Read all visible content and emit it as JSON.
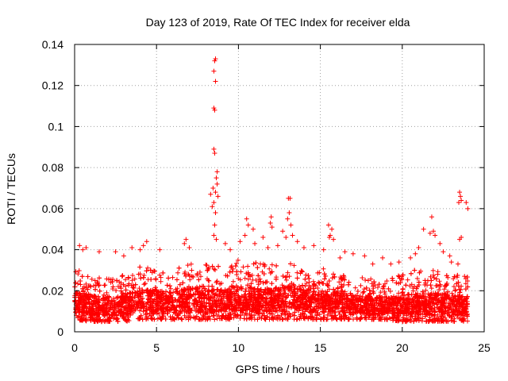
{
  "chart_data": {
    "type": "scatter",
    "title": "Day 123 of 2019, Rate Of TEC Index for receiver elda",
    "xlabel": "GPS time / hours",
    "ylabel": "ROTI / TECUs",
    "xlim": [
      0,
      25
    ],
    "ylim": [
      0,
      0.14
    ],
    "xticks": [
      0,
      5,
      10,
      15,
      20,
      25
    ],
    "xtick_labels": [
      "0",
      "5",
      "10",
      "15",
      "20",
      "25"
    ],
    "yticks": [
      0,
      0.02,
      0.04,
      0.06,
      0.08,
      0.1,
      0.12,
      0.14
    ],
    "ytick_labels": [
      "0",
      "0.02",
      "0.04",
      "0.06",
      "0.08",
      "0.1",
      "0.12",
      "0.14"
    ],
    "grid": true,
    "marker": "+",
    "series": [
      {
        "name": "ROTI",
        "color": "#ff0000",
        "points": [
          {
            "x": 8.55,
            "y": 0.132
          },
          {
            "x": 8.6,
            "y": 0.133
          },
          {
            "x": 8.5,
            "y": 0.127
          },
          {
            "x": 8.6,
            "y": 0.122
          },
          {
            "x": 8.5,
            "y": 0.109
          },
          {
            "x": 8.55,
            "y": 0.108
          },
          {
            "x": 8.5,
            "y": 0.089
          },
          {
            "x": 8.55,
            "y": 0.087
          },
          {
            "x": 8.7,
            "y": 0.078
          },
          {
            "x": 8.65,
            "y": 0.075
          },
          {
            "x": 8.7,
            "y": 0.072
          },
          {
            "x": 8.45,
            "y": 0.07
          },
          {
            "x": 8.6,
            "y": 0.068
          },
          {
            "x": 8.3,
            "y": 0.067
          },
          {
            "x": 8.75,
            "y": 0.066
          },
          {
            "x": 8.5,
            "y": 0.063
          },
          {
            "x": 8.4,
            "y": 0.061
          },
          {
            "x": 8.6,
            "y": 0.058
          },
          {
            "x": 8.55,
            "y": 0.052
          },
          {
            "x": 8.5,
            "y": 0.047
          },
          {
            "x": 8.65,
            "y": 0.045
          },
          {
            "x": 13.05,
            "y": 0.065
          },
          {
            "x": 13.15,
            "y": 0.065
          },
          {
            "x": 13.1,
            "y": 0.058
          },
          {
            "x": 13.0,
            "y": 0.055
          },
          {
            "x": 13.2,
            "y": 0.052
          },
          {
            "x": 12.0,
            "y": 0.056
          },
          {
            "x": 11.95,
            "y": 0.053
          },
          {
            "x": 12.05,
            "y": 0.051
          },
          {
            "x": 10.5,
            "y": 0.055
          },
          {
            "x": 10.6,
            "y": 0.052
          },
          {
            "x": 10.9,
            "y": 0.05
          },
          {
            "x": 10.4,
            "y": 0.047
          },
          {
            "x": 11.5,
            "y": 0.046
          },
          {
            "x": 12.7,
            "y": 0.049
          },
          {
            "x": 12.9,
            "y": 0.046
          },
          {
            "x": 13.3,
            "y": 0.047
          },
          {
            "x": 15.5,
            "y": 0.052
          },
          {
            "x": 15.7,
            "y": 0.05
          },
          {
            "x": 15.6,
            "y": 0.047
          },
          {
            "x": 15.8,
            "y": 0.045
          },
          {
            "x": 15.55,
            "y": 0.046
          },
          {
            "x": 21.3,
            "y": 0.05
          },
          {
            "x": 21.8,
            "y": 0.056
          },
          {
            "x": 21.9,
            "y": 0.049
          },
          {
            "x": 21.7,
            "y": 0.048
          },
          {
            "x": 22.0,
            "y": 0.047
          },
          {
            "x": 23.5,
            "y": 0.068
          },
          {
            "x": 23.55,
            "y": 0.066
          },
          {
            "x": 23.6,
            "y": 0.064
          },
          {
            "x": 23.45,
            "y": 0.063
          },
          {
            "x": 23.9,
            "y": 0.063
          },
          {
            "x": 24.0,
            "y": 0.06
          },
          {
            "x": 23.6,
            "y": 0.046
          },
          {
            "x": 23.5,
            "y": 0.045
          },
          {
            "x": 23.4,
            "y": 0.033
          },
          {
            "x": 22.9,
            "y": 0.037
          },
          {
            "x": 23.0,
            "y": 0.034
          },
          {
            "x": 17.7,
            "y": 0.037
          },
          {
            "x": 16.5,
            "y": 0.039
          },
          {
            "x": 16.2,
            "y": 0.036
          },
          {
            "x": 18.2,
            "y": 0.033
          },
          {
            "x": 19.8,
            "y": 0.034
          },
          {
            "x": 20.5,
            "y": 0.036
          },
          {
            "x": 20.8,
            "y": 0.038
          },
          {
            "x": 21.0,
            "y": 0.041
          },
          {
            "x": 22.3,
            "y": 0.043
          },
          {
            "x": 22.5,
            "y": 0.039
          },
          {
            "x": 4.4,
            "y": 0.044
          },
          {
            "x": 4.2,
            "y": 0.042
          },
          {
            "x": 4.0,
            "y": 0.04
          },
          {
            "x": 6.8,
            "y": 0.045
          },
          {
            "x": 6.7,
            "y": 0.043
          },
          {
            "x": 7.0,
            "y": 0.041
          },
          {
            "x": 5.2,
            "y": 0.04
          },
          {
            "x": 3.5,
            "y": 0.041
          },
          {
            "x": 3.0,
            "y": 0.037
          },
          {
            "x": 2.5,
            "y": 0.039
          },
          {
            "x": 0.3,
            "y": 0.042
          },
          {
            "x": 0.5,
            "y": 0.04
          },
          {
            "x": 0.7,
            "y": 0.041
          },
          {
            "x": 1.5,
            "y": 0.039
          },
          {
            "x": 9.2,
            "y": 0.043
          },
          {
            "x": 9.5,
            "y": 0.04
          },
          {
            "x": 10.1,
            "y": 0.044
          },
          {
            "x": 11.0,
            "y": 0.043
          },
          {
            "x": 11.8,
            "y": 0.041
          },
          {
            "x": 12.4,
            "y": 0.042
          },
          {
            "x": 13.6,
            "y": 0.044
          },
          {
            "x": 14.0,
            "y": 0.041
          },
          {
            "x": 14.6,
            "y": 0.042
          },
          {
            "x": 15.2,
            "y": 0.04
          },
          {
            "x": 17.0,
            "y": 0.038
          },
          {
            "x": 18.8,
            "y": 0.036
          },
          {
            "x": 19.3,
            "y": 0.033
          },
          {
            "x": 23.8,
            "y": 0.027
          },
          {
            "x": 23.9,
            "y": 0.016
          },
          {
            "x": 23.7,
            "y": 0.008
          }
        ],
        "band_envelope": {
          "hours": [
            0,
            1,
            2,
            3,
            4,
            5,
            6,
            7,
            8,
            9,
            10,
            11,
            12,
            13,
            14,
            15,
            16,
            17,
            18,
            19,
            20,
            21,
            22,
            23,
            24
          ],
          "low": [
            0.006,
            0.005,
            0.005,
            0.005,
            0.006,
            0.006,
            0.006,
            0.006,
            0.006,
            0.006,
            0.006,
            0.006,
            0.006,
            0.006,
            0.006,
            0.006,
            0.006,
            0.006,
            0.006,
            0.006,
            0.005,
            0.005,
            0.005,
            0.005,
            0.005
          ],
          "high": [
            0.031,
            0.028,
            0.026,
            0.028,
            0.033,
            0.031,
            0.03,
            0.034,
            0.033,
            0.032,
            0.036,
            0.034,
            0.033,
            0.035,
            0.032,
            0.031,
            0.03,
            0.027,
            0.026,
            0.026,
            0.028,
            0.031,
            0.03,
            0.029,
            0.027
          ]
        }
      }
    ]
  }
}
